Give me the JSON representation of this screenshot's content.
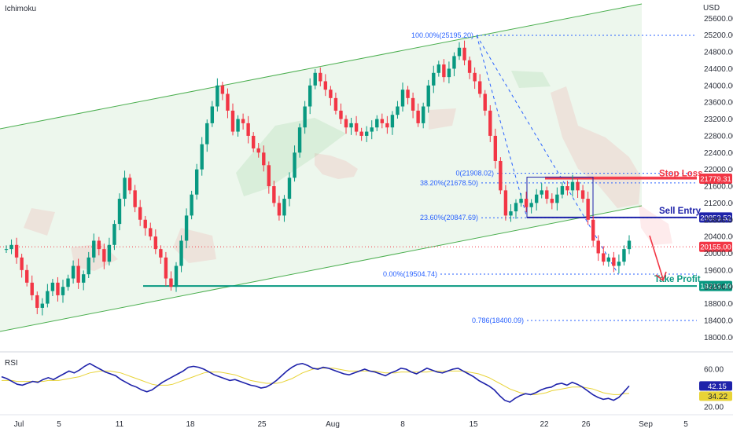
{
  "chart_data": {
    "type": "candlestick",
    "title": "Ichimoku",
    "currency": "USD",
    "y_ticks": [
      25600,
      25200,
      24800,
      24400,
      24000,
      23600,
      23200,
      22800,
      22400,
      22000,
      21600,
      21200,
      20800,
      20400,
      20000,
      19600,
      19200,
      18800,
      18400,
      18000
    ],
    "ylim": [
      17800,
      25850
    ],
    "x_ticks": [
      "Jul",
      "5",
      "11",
      "18",
      "25",
      "Aug",
      "8",
      "15",
      "22",
      "26",
      "Sep",
      "5"
    ],
    "price_tags": [
      {
        "label": "21779.31",
        "value": 21779.31,
        "color": "#f23645"
      },
      {
        "label": "20853.52",
        "value": 20853.52,
        "color": "#1e22aa"
      },
      {
        "label": "20155.00",
        "value": 20155.0,
        "color": "#f23645"
      },
      {
        "label": "19219.49",
        "value": 19219.49,
        "color": "#089981"
      }
    ],
    "fib_levels": [
      {
        "label": "100.00%(25195.20)",
        "value": 25195.2
      },
      {
        "label": "38.20%(21678.50)",
        "value": 21678.5
      },
      {
        "label": "0(21908.02)",
        "value": 21908.02
      },
      {
        "label": "23.60%(20847.69)",
        "value": 20847.69
      },
      {
        "label": "0.00%(19504.74)",
        "value": 19504.74
      },
      {
        "label": "0.786(18400.09)",
        "value": 18400.09
      }
    ],
    "annotations": [
      {
        "label": "Stop Loss",
        "value": 21779.31,
        "color": "#f23645"
      },
      {
        "label": "Sell Entry",
        "value": 20853.52,
        "color": "#1e22aa"
      },
      {
        "label": "Take Profit",
        "value": 19219.49,
        "color": "#089981"
      }
    ],
    "series": [
      {
        "name": "price",
        "values": [
          20100,
          20200,
          19900,
          19600,
          19300,
          19000,
          18700,
          18800,
          19100,
          19300,
          19000,
          19200,
          19400,
          19700,
          19300,
          19500,
          19900,
          20300,
          20100,
          19800,
          20200,
          20700,
          21300,
          21800,
          21500,
          21100,
          20800,
          20600,
          20400,
          20100,
          19900,
          19400,
          19200,
          19700,
          20300,
          20900,
          21400,
          22000,
          22600,
          23100,
          23500,
          24000,
          23800,
          23400,
          22900,
          23200,
          23100,
          22800,
          22500,
          22400,
          22100,
          21600,
          21200,
          20900,
          21300,
          21800,
          22400,
          23000,
          23500,
          24000,
          24300,
          24100,
          23900,
          23700,
          23400,
          23200,
          23000,
          23100,
          22900,
          22800,
          22900,
          23000,
          23200,
          23100,
          23000,
          23300,
          23500,
          23900,
          23700,
          23400,
          23100,
          23500,
          24000,
          24300,
          24500,
          24200,
          24400,
          24700,
          24900,
          24600,
          24300,
          24100,
          23800,
          23400,
          22800,
          22200,
          21500,
          20900,
          21000,
          21200,
          21300,
          21100,
          21200,
          21400,
          21500,
          21300,
          21200,
          21400,
          21600,
          21500,
          21700,
          21500,
          21300,
          20800,
          20300,
          20000,
          19800,
          19900,
          19700,
          19800,
          20100,
          20300
        ]
      },
      {
        "name": "RSI",
        "values": [
          52,
          50,
          47,
          44,
          43,
          45,
          47,
          46,
          49,
          51,
          49,
          52,
          55,
          58,
          56,
          59,
          63,
          66,
          63,
          60,
          57,
          55,
          53,
          49,
          46,
          43,
          41,
          38,
          36,
          38,
          42,
          46,
          49,
          52,
          55,
          58,
          62,
          63,
          62,
          60,
          57,
          54,
          52,
          50,
          48,
          49,
          47,
          45,
          43,
          42,
          40,
          41,
          44,
          48,
          53,
          58,
          62,
          65,
          66,
          64,
          61,
          60,
          62,
          61,
          59,
          57,
          55,
          54,
          56,
          58,
          60,
          58,
          57,
          55,
          53,
          56,
          58,
          61,
          60,
          57,
          55,
          58,
          61,
          59,
          57,
          56,
          58,
          60,
          61,
          58,
          55,
          52,
          48,
          45,
          42,
          38,
          32,
          27,
          25,
          29,
          32,
          34,
          33,
          35,
          38,
          40,
          41,
          44,
          45,
          43,
          46,
          44,
          41,
          37,
          33,
          30,
          28,
          29,
          27,
          30,
          36,
          42.15
        ]
      },
      {
        "name": "RSI MA",
        "values": [
          48,
          48,
          48,
          47,
          47,
          47,
          47,
          47,
          47,
          48,
          48,
          48,
          49,
          50,
          51,
          52,
          54,
          56,
          57,
          58,
          58,
          58,
          57,
          56,
          54,
          52,
          50,
          48,
          46,
          44,
          43,
          43,
          43,
          44,
          46,
          48,
          50,
          52,
          54,
          56,
          57,
          57,
          57,
          56,
          55,
          54,
          52,
          50,
          48,
          47,
          46,
          45,
          45,
          45,
          46,
          48,
          50,
          53,
          56,
          58,
          60,
          61,
          61,
          61,
          61,
          60,
          59,
          58,
          58,
          58,
          58,
          58,
          58,
          57,
          56,
          56,
          56,
          57,
          57,
          57,
          57,
          57,
          57,
          58,
          58,
          58,
          58,
          58,
          58,
          58,
          57,
          56,
          55,
          53,
          51,
          48,
          45,
          42,
          39,
          37,
          35,
          34,
          33,
          33,
          34,
          35,
          37,
          38,
          39,
          40,
          41,
          41,
          41,
          40,
          39,
          37,
          35,
          34,
          33,
          33,
          34,
          34.22
        ]
      }
    ],
    "rsi": {
      "label": "RSI",
      "ticks": [
        60.0,
        40.0,
        20.0
      ],
      "ylim": [
        15,
        75
      ],
      "current": "42.15",
      "ma_current": "34.22"
    }
  },
  "colors": {
    "up": "#089981",
    "down": "#f23645",
    "channel": "#4caf50",
    "fib": "#2962ff",
    "rsi": "#1e22aa",
    "rsi_ma": "#e8d336"
  }
}
